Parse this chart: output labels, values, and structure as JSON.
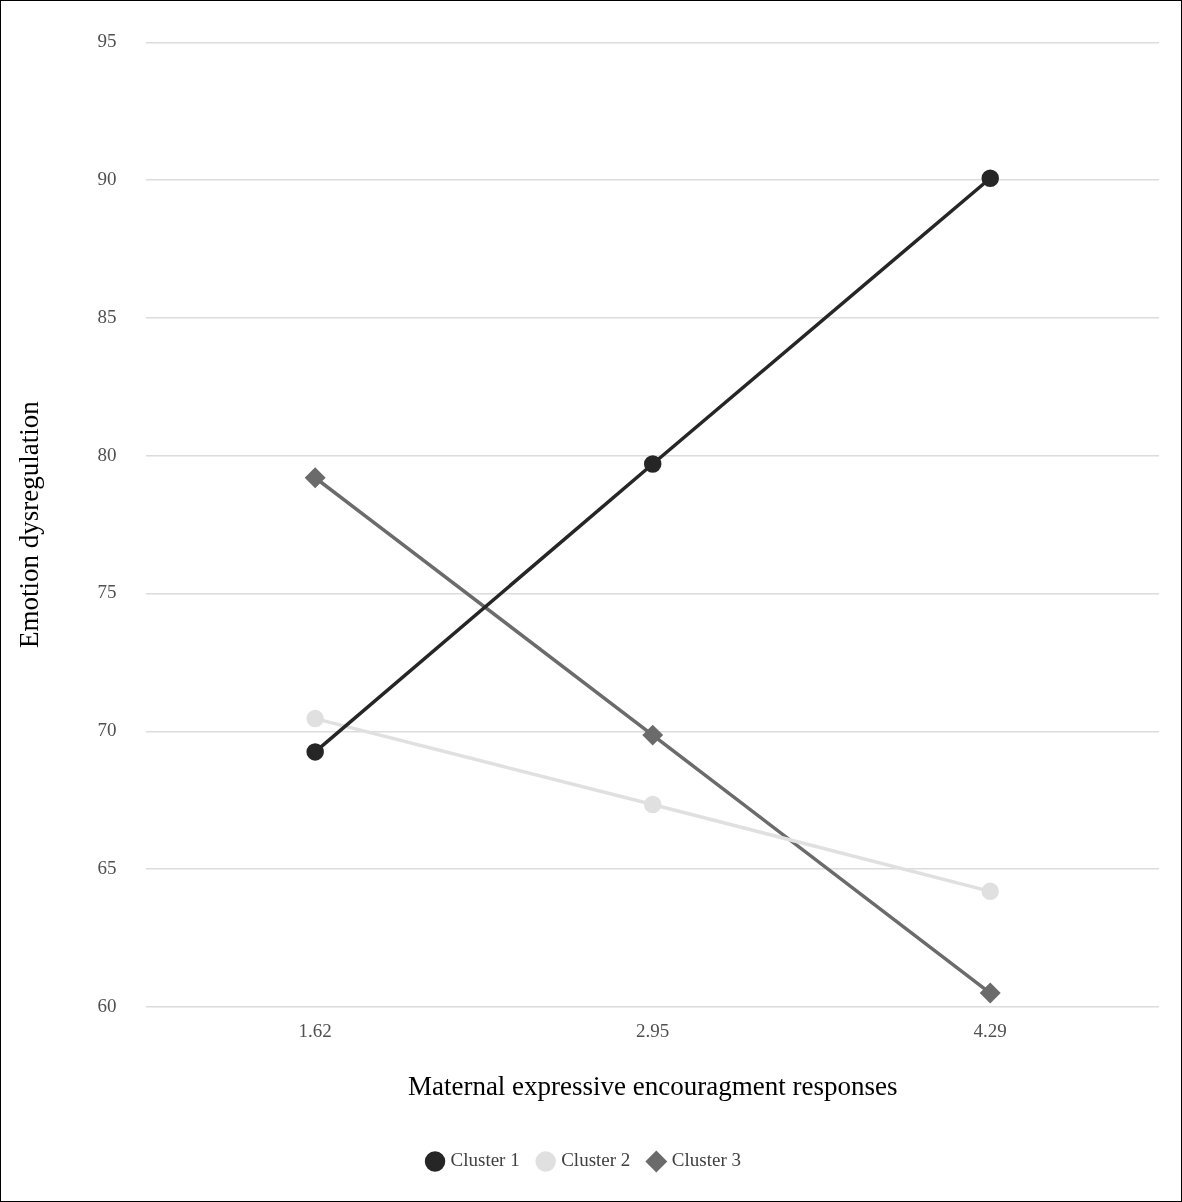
{
  "chart_data": {
    "type": "line",
    "xlabel": "Maternal expressive encouragment responses",
    "ylabel": "Emotion dysregulation",
    "categories": [
      "1.62",
      "2.95",
      "4.29"
    ],
    "series": [
      {
        "name": "Cluster 1",
        "color": "#262626",
        "marker": "circle",
        "values": [
          69.25,
          79.7,
          90.07
        ]
      },
      {
        "name": "Cluster 2",
        "color": "#e0e0e0",
        "marker": "circle",
        "values": [
          70.46,
          67.34,
          64.19
        ]
      },
      {
        "name": "Cluster 3",
        "color": "#6b6b6b",
        "marker": "diamond",
        "values": [
          79.2,
          69.86,
          60.5
        ]
      }
    ],
    "ylim": [
      60,
      95
    ],
    "yticks": [
      60,
      65,
      70,
      75,
      80,
      85,
      90,
      95
    ],
    "grid": "y",
    "legend": "bottom",
    "line_style": "solid"
  }
}
